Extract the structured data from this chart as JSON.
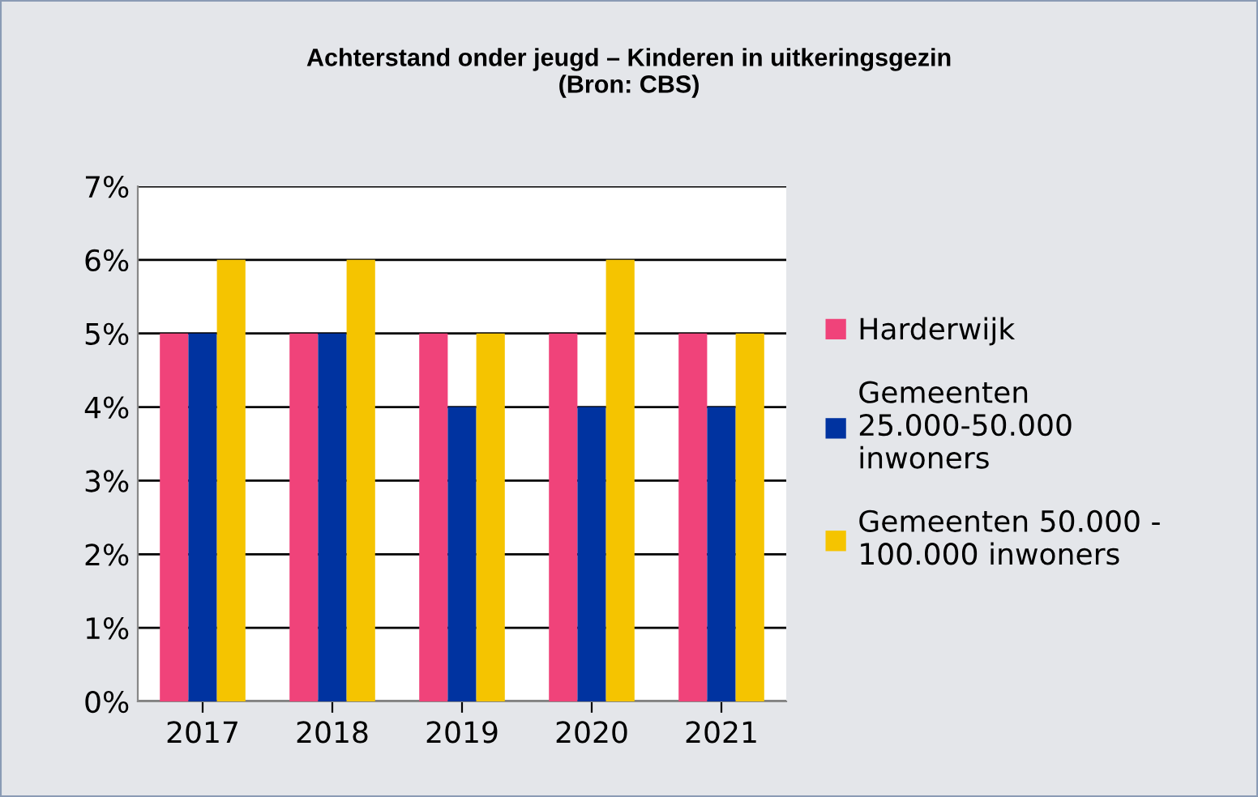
{
  "chart_data": {
    "type": "bar",
    "title": "Achterstand onder jeugd – Kinderen in uitkeringsgezin",
    "subtitle": "(Bron: CBS)",
    "categories": [
      "2017",
      "2018",
      "2019",
      "2020",
      "2021"
    ],
    "series": [
      {
        "name": "Harderwijk",
        "color": "#f0437a",
        "values": [
          5,
          5,
          5,
          5,
          5
        ]
      },
      {
        "name": "Gemeenten 25.000-50.000 inwoners",
        "color": "#0033a0",
        "values": [
          5,
          5,
          4,
          4,
          4
        ]
      },
      {
        "name": "Gemeenten 50.000 - 100.000 inwoners",
        "color": "#f5c400",
        "values": [
          6,
          6,
          5,
          6,
          5
        ]
      }
    ],
    "ylim": [
      0,
      7
    ],
    "yticks": [
      {
        "value": 0,
        "label": "0%"
      },
      {
        "value": 1,
        "label": "1%"
      },
      {
        "value": 2,
        "label": "2%"
      },
      {
        "value": 3,
        "label": "3%"
      },
      {
        "value": 4,
        "label": "4%"
      },
      {
        "value": 5,
        "label": "5%"
      },
      {
        "value": 6,
        "label": "6%"
      },
      {
        "value": 7,
        "label": "7%"
      }
    ],
    "grid": "y",
    "legend": "right"
  }
}
